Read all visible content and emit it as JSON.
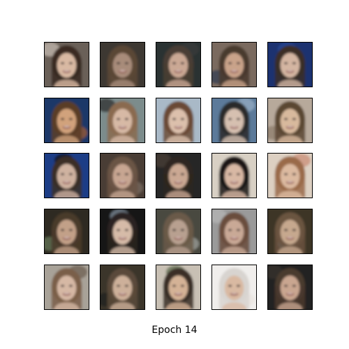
{
  "caption": "Epoch 14",
  "grid": {
    "rows": 5,
    "cols": 5,
    "tiles": [
      {
        "bg": "#6b6058",
        "hair": "#3a2a22",
        "skin": "#d9b9a3",
        "accent": "#c9c1b7"
      },
      {
        "bg": "#3c3732",
        "hair": "#5a4636",
        "skin": "#a88c7a",
        "accent": "#6a5a4a"
      },
      {
        "bg": "#2c3030",
        "hair": "#4a3e34",
        "skin": "#caa894",
        "accent": "#3a3c3c"
      },
      {
        "bg": "#7a6a5e",
        "hair": "#4a3a2e",
        "skin": "#c9a38a",
        "accent": "#2d3d53"
      },
      {
        "bg": "#1a3070",
        "hair": "#3a2e28",
        "skin": "#d4b6a2",
        "accent": "#2a4a9a"
      },
      {
        "bg": "#1e3868",
        "hair": "#5a3e28",
        "skin": "#d1a27c",
        "accent": "#a65e2e"
      },
      {
        "bg": "#7c8c8c",
        "hair": "#8a6a50",
        "skin": "#d7b9a5",
        "accent": "#2a2a2a"
      },
      {
        "bg": "#a9b9c7",
        "hair": "#6a4a36",
        "skin": "#dcc0ac",
        "accent": "#c9d4dc"
      },
      {
        "bg": "#5c7a9a",
        "hair": "#2a2a2a",
        "skin": "#d6c0b0",
        "accent": "#9ab0c6"
      },
      {
        "bg": "#b7a99b",
        "hair": "#5a4632",
        "skin": "#d8b99d",
        "accent": "#8a7a6a"
      },
      {
        "bg": "#1f3c86",
        "hair": "#3a2e28",
        "skin": "#cfb2a0",
        "accent": "#101010"
      },
      {
        "bg": "#4a3c34",
        "hair": "#6a5444",
        "skin": "#c7a692",
        "accent": "#7a6e64"
      },
      {
        "bg": "#262626",
        "hair": "#2e2620",
        "skin": "#caa893",
        "accent": "#4a4038"
      },
      {
        "bg": "#d8d0c4",
        "hair": "#1a1414",
        "skin": "#d8b8a4",
        "accent": "#e6e0d6"
      },
      {
        "bg": "#ddd0c2",
        "hair": "#9a6a4a",
        "skin": "#dcbaa0",
        "accent": "#c98a72"
      },
      {
        "bg": "#2e2a20",
        "hair": "#4a3a2a",
        "skin": "#c2a088",
        "accent": "#6a7a5a"
      },
      {
        "bg": "#141414",
        "hair": "#2a2420",
        "skin": "#d6bba8",
        "accent": "#8a9aaa"
      },
      {
        "bg": "#4a4840",
        "hair": "#6a5a48",
        "skin": "#b8a090",
        "accent": "#a4a8a2"
      },
      {
        "bg": "#9a9a9a",
        "hair": "#6a4e3e",
        "skin": "#c9a996",
        "accent": "#b6b6b6"
      },
      {
        "bg": "#3e3426",
        "hair": "#6a5440",
        "skin": "#c6a88e",
        "accent": "#7a8a9a"
      },
      {
        "bg": "#a8a298",
        "hair": "#7a5e48",
        "skin": "#d6b8a4",
        "accent": "#6a5a4e"
      },
      {
        "bg": "#3a342c",
        "hair": "#5a4a3a",
        "skin": "#cdb09a",
        "accent": "#202020"
      },
      {
        "bg": "#c8c0b4",
        "hair": "#3a2e26",
        "skin": "#d4b296",
        "accent": "#5a6a4a"
      },
      {
        "bg": "#f0eeec",
        "hair": "#d8d4d0",
        "skin": "#d9b9a2",
        "accent": "#e8e4e0"
      },
      {
        "bg": "#222222",
        "hair": "#4a3a2e",
        "skin": "#c9a690",
        "accent": "#3a3430"
      }
    ]
  }
}
